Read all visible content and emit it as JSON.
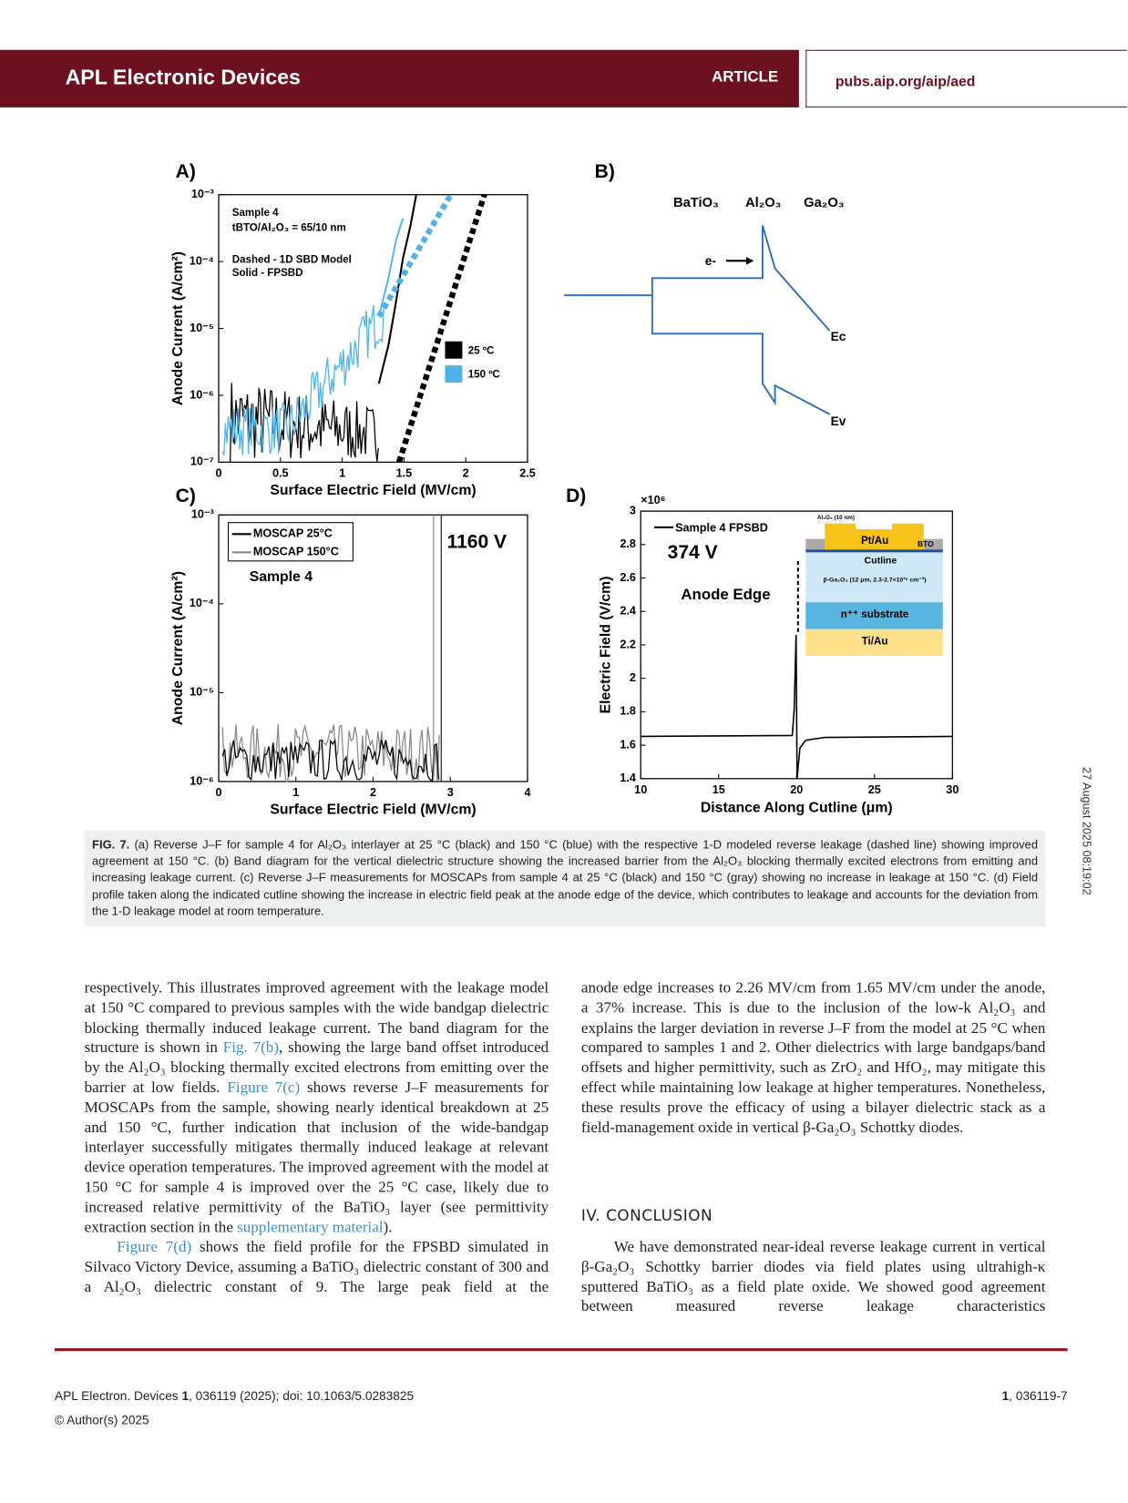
{
  "header": {
    "journal": "APL Electronic Devices",
    "section": "ARTICLE",
    "url": "pubs.aip.org/aip/aed"
  },
  "figure": {
    "panels": [
      {
        "label": "A)",
        "ylabel": "Anode Current (A/cm²)",
        "xlabel": "Surface Electric Field (MV/cm)",
        "yticks": [
          "10⁻³",
          "10⁻⁴",
          "10⁻⁵",
          "10⁻⁶",
          "10⁻⁷"
        ],
        "xticks": [
          "0",
          "0.5",
          "1",
          "1.5",
          "2",
          "2.5"
        ],
        "annotations": [
          "Sample 4",
          "tBTO/Al₂O₃ = 65/10 nm",
          "Dashed - 1D SBD Model",
          "Solid - FPSBD"
        ],
        "legend": [
          "25 ºC",
          "150 ºC"
        ]
      },
      {
        "label": "B)",
        "layers": [
          "BaTiO₃",
          "Al₂O₃",
          "Ga₂O₃"
        ],
        "labels": [
          "e-",
          "Ec",
          "Ev"
        ]
      },
      {
        "label": "C)",
        "ylabel": "Anode Current (A/cm²)",
        "xlabel": "Surface Electric Field (MV/cm)",
        "yticks": [
          "10⁻³",
          "10⁻⁴",
          "10⁻⁵",
          "10⁻⁶"
        ],
        "xticks": [
          "0",
          "1",
          "2",
          "3",
          "4"
        ],
        "legend": [
          "MOSCAP 25°C",
          "MOSCAP 150°C"
        ],
        "annotations": [
          "1160 V",
          "Sample 4"
        ]
      },
      {
        "label": "D)",
        "ylabel": "Electric Field (V/cm)",
        "xlabel": "Distance Along Cutline (μm)",
        "yticks": [
          "3",
          "2.8",
          "2.6",
          "2.4",
          "2.2",
          "2",
          "1.8",
          "1.6",
          "1.4"
        ],
        "xticks": [
          "10",
          "15",
          "20",
          "25",
          "30"
        ],
        "multiplier": "×10⁶",
        "legend": [
          "Sample 4 FPSBD"
        ],
        "annotations": [
          "374 V",
          "Anode Edge"
        ],
        "inset": [
          "Al₂O₃ (10 nm)",
          "Pt/Au",
          "BTO",
          "Cutline",
          "β-Ga₂O₃ (12 μm, 2.3-2.7×10¹⁶ cm⁻³)",
          "n⁺⁺ substrate",
          "Ti/Au"
        ]
      }
    ],
    "caption": [
      {
        "text": "FIG. 7.",
        "bold": true
      },
      " (a) Reverse J–F for sample 4 for Al₂O₃ interlayer at 25 °C (black) and 150 °C (blue) with the respective 1-D modeled reverse leakage (dashed line) showing improved agreement at 150 °C. (b) Band diagram for the vertical dielectric structure showing the increased barrier from the Al₂O₃ blocking thermally excited electrons from emitting and increasing leakage current. (c) Reverse J–F measurements for MOSCAPs from sample 4 at 25 °C (black) and 150 °C (gray) showing no increase in leakage at 150 °C. (d) Field profile taken along the indicated cutline showing the increase in electric field peak at the anode edge of the device, which contributes to leakage and accounts for the deviation from the 1-D leakage model at room temperature."
    ]
  },
  "body": {
    "left": [
      [
        "respectively. This illustrates improved agreement with the leakage model at 150 °C compared to previous samples with the wide bandgap dielectric blocking thermally induced leakage current. The band diagram for the structure is shown in ",
        {
          "text": "Fig. 7(b)",
          "link": true
        },
        ", showing the large band offset introduced by the Al₂O₃ blocking thermally excited electrons from emitting over the barrier at low fields. ",
        {
          "text": "Figure 7(c)",
          "link": true
        },
        " shows reverse J–F measurements for MOSCAPs from the sample, showing nearly identical breakdown at 25 and 150 °C, further indication that inclusion of the wide-bandgap interlayer successfully mitigates thermally induced leakage at relevant device operation temperatures. The improved agreement with the model at 150 °C for sample 4 is improved over the 25 °C case, likely due to increased relative permittivity of the BaTiO₃ layer (see permittivity extraction section in the ",
        {
          "text": "supplementary material",
          "link": true
        },
        ")."
      ],
      [
        {
          "text": "Figure 7(d)",
          "link": true
        },
        " shows the field profile for the FPSBD simulated in Silvaco Victory Device, assuming a BaTiO₃ dielectric constant of 300 and a Al₂O₃ dielectric constant of 9. The large peak field at the"
      ]
    ],
    "right": [
      [
        "anode edge increases to 2.26 MV/cm from 1.65 MV/cm under the anode, a 37% increase. This is due to the inclusion of the low-k Al₂O₃ and explains the larger deviation in reverse J–F from the model at 25 °C when compared to samples 1 and 2. Other dielectrics with large bandgaps/band offsets and higher permittivity, such as ZrO₂ and HfO₂, may mitigate this effect while maintaining low leakage at higher temperatures. Nonetheless, these results prove the efficacy of using a bilayer dielectric stack as a field-management oxide in vertical β-Ga₂O₃ Schottky diodes."
      ]
    ],
    "heading": "IV. CONCLUSION",
    "conclusion": [
      "We have demonstrated near-ideal reverse leakage current in vertical β-Ga₂O₃ Schottky barrier diodes via field plates using ultrahigh-κ sputtered BaTiO₃ as a field plate oxide. We showed good agreement between measured reverse leakage characteristics"
    ]
  },
  "footer": {
    "citation": [
      "APL Electron. Devices ",
      {
        "text": "1",
        "bold": true
      },
      ", 036119 (2025); doi: 10.1063/5.0283825"
    ],
    "copyright": "© Author(s) 2025",
    "page": [
      {
        "text": "1",
        "bold": true
      },
      ", 036119-7"
    ],
    "stamp": "27 August 2025 08:19:02"
  }
}
